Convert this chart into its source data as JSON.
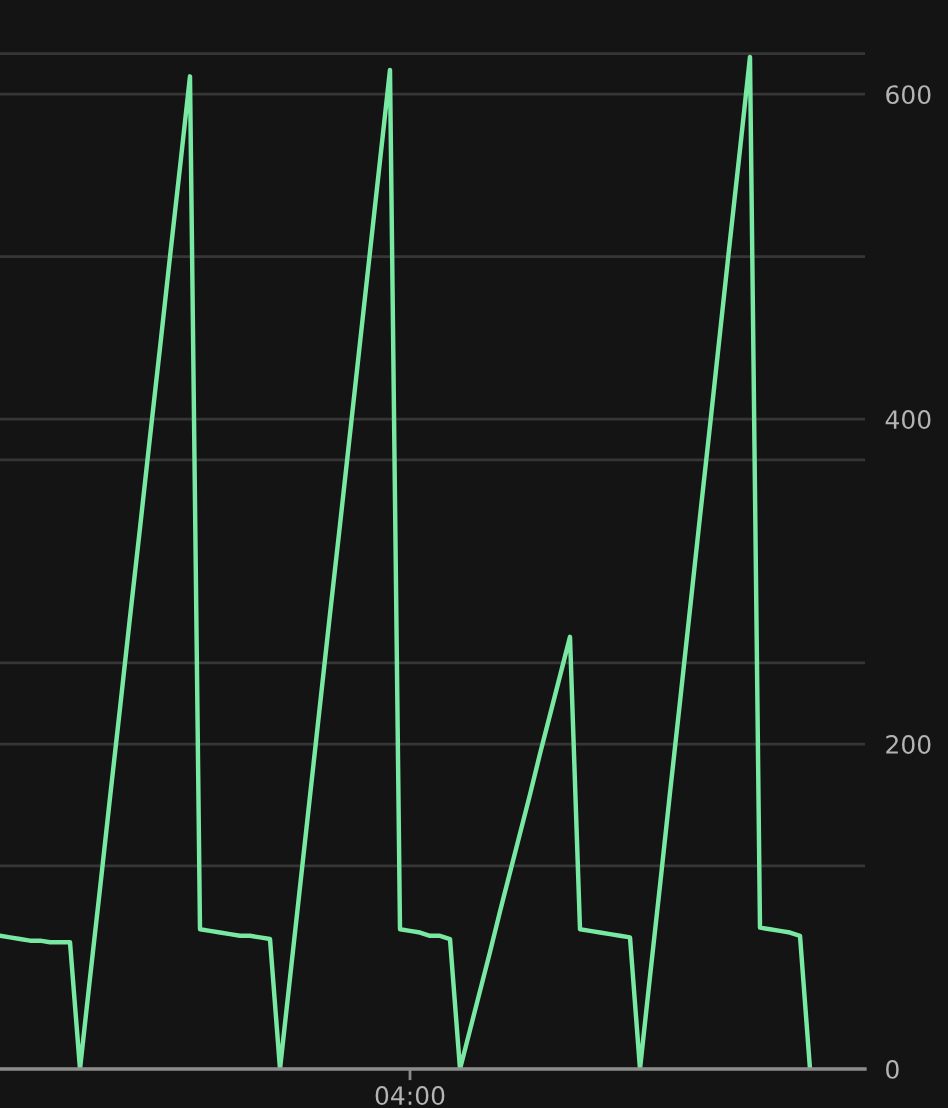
{
  "chart_data": {
    "type": "line",
    "categories": [
      null,
      null,
      null,
      null,
      null,
      null,
      null,
      null,
      null,
      null,
      null,
      null,
      null,
      null,
      null,
      null,
      null,
      null,
      null,
      null,
      null,
      null,
      null,
      null,
      null,
      null,
      null,
      null,
      null,
      null,
      null,
      null,
      null,
      null,
      null,
      null,
      null,
      null,
      null,
      null,
      null,
      "04:00",
      null,
      null,
      null,
      null,
      null,
      null,
      null,
      null,
      null,
      null,
      null,
      null,
      null,
      null,
      null,
      null,
      null,
      null,
      null,
      null,
      null,
      null,
      null,
      null,
      null,
      null,
      null,
      null,
      null,
      null,
      null,
      null,
      null,
      null,
      null,
      null,
      null,
      null,
      null,
      null,
      null,
      null,
      null,
      null,
      null
    ],
    "series": [
      {
        "color": "#78e8a2",
        "values": [
          82,
          81,
          80,
          79,
          79,
          78,
          78,
          78,
          0,
          56,
          111,
          167,
          222,
          278,
          333,
          389,
          444,
          500,
          555,
          611,
          86,
          85,
          84,
          83,
          82,
          82,
          81,
          80,
          0,
          56,
          112,
          168,
          224,
          280,
          335,
          391,
          447,
          503,
          559,
          615,
          86,
          85,
          84,
          82,
          82,
          80,
          0,
          24,
          48,
          72,
          97,
          121,
          145,
          169,
          194,
          218,
          242,
          266,
          86,
          85,
          84,
          83,
          82,
          81,
          0,
          57,
          113,
          170,
          226,
          283,
          340,
          396,
          453,
          510,
          566,
          623,
          87,
          86,
          85,
          84,
          82,
          0,
          null,
          null,
          null,
          null,
          null
        ]
      }
    ],
    "ylim": [
      0,
      658
    ],
    "yticks": [
      0,
      200,
      400,
      600
    ],
    "grid": "y",
    "ref_lines": [
      {
        "axis": "y",
        "value": 125,
        "color": "#363636"
      },
      {
        "axis": "y",
        "value": 250,
        "color": "#363636"
      },
      {
        "axis": "y",
        "value": 375,
        "color": "#363636"
      },
      {
        "axis": "y",
        "value": 500,
        "color": "#363636"
      },
      {
        "axis": "y",
        "value": 625,
        "color": "#363636"
      }
    ]
  }
}
